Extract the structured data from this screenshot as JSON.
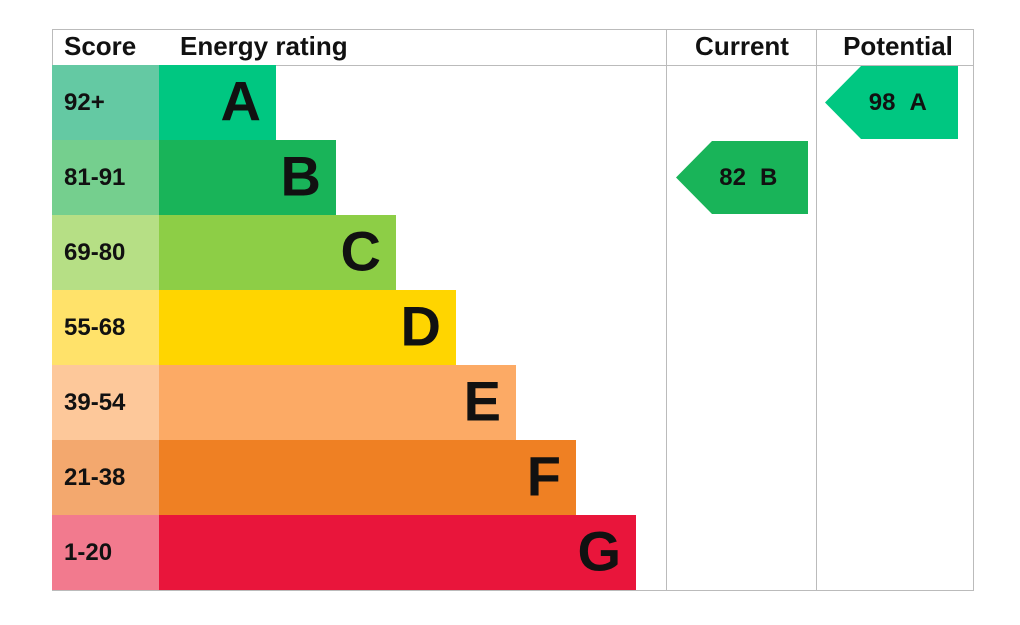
{
  "header": {
    "score": "Score",
    "energy_rating": "Energy rating",
    "current": "Current",
    "potential": "Potential"
  },
  "bands": [
    {
      "score": "92+",
      "rating": "A"
    },
    {
      "score": "81-91",
      "rating": "B"
    },
    {
      "score": "69-80",
      "rating": "C"
    },
    {
      "score": "55-68",
      "rating": "D"
    },
    {
      "score": "39-54",
      "rating": "E"
    },
    {
      "score": "21-38",
      "rating": "F"
    },
    {
      "score": "1-20",
      "rating": "G"
    }
  ],
  "current": {
    "score": 82,
    "rating": "B"
  },
  "potential": {
    "score": 98,
    "rating": "A"
  }
}
